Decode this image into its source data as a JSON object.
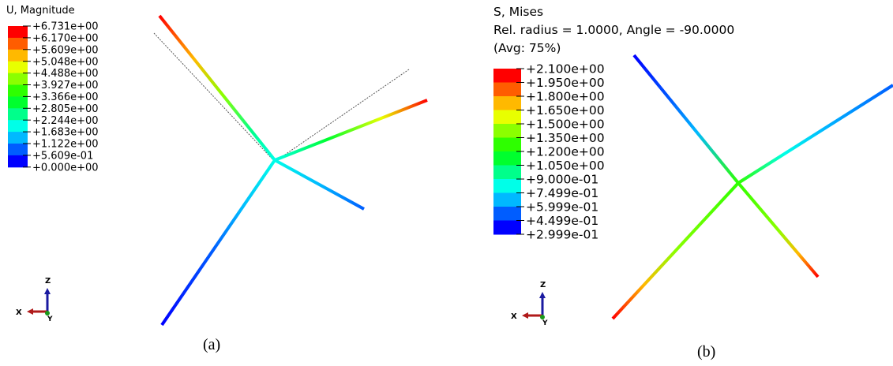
{
  "panels": [
    {
      "title_lines": [
        "U, Magnitude"
      ],
      "legend": [
        "+6.731e+00",
        "+6.170e+00",
        "+5.609e+00",
        "+5.048e+00",
        "+4.488e+00",
        "+3.927e+00",
        "+3.366e+00",
        "+2.805e+00",
        "+2.244e+00",
        "+1.683e+00",
        "+1.122e+00",
        "+5.609e-01",
        "+0.000e+00"
      ],
      "axes": {
        "x": "X",
        "y": "Y",
        "z": "Z"
      },
      "caption": "(a)"
    },
    {
      "title_lines": [
        "S, Mises",
        "Rel. radius = 1.0000, Angle = -90.0000",
        "(Avg: 75%)"
      ],
      "legend": [
        "+2.100e+00",
        "+1.950e+00",
        "+1.800e+00",
        "+1.650e+00",
        "+1.500e+00",
        "+1.350e+00",
        "+1.200e+00",
        "+1.050e+00",
        "+9.000e-01",
        "+7.499e-01",
        "+5.999e-01",
        "+4.499e-01",
        "+2.999e-01"
      ],
      "axes": {
        "x": "X",
        "y": "Y",
        "z": "Z"
      },
      "caption": "(b)"
    }
  ]
}
